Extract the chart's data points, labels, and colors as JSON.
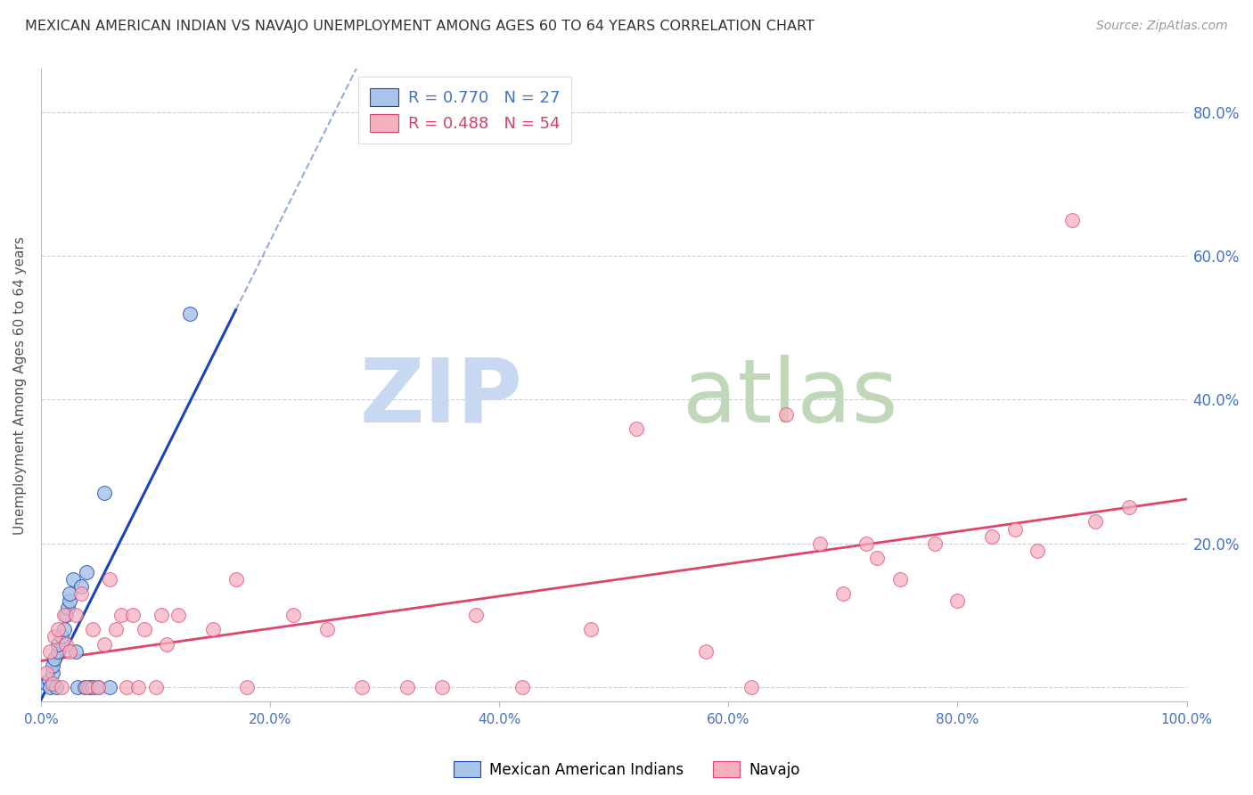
{
  "title": "MEXICAN AMERICAN INDIAN VS NAVAJO UNEMPLOYMENT AMONG AGES 60 TO 64 YEARS CORRELATION CHART",
  "source": "Source: ZipAtlas.com",
  "ylabel": "Unemployment Among Ages 60 to 64 years",
  "xlim": [
    0,
    1.0
  ],
  "ylim": [
    -0.02,
    0.86
  ],
  "yticks": [
    0.0,
    0.2,
    0.4,
    0.6,
    0.8
  ],
  "ytick_labels": [
    "",
    "20.0%",
    "40.0%",
    "60.0%",
    "80.0%"
  ],
  "xticks": [
    0.0,
    0.2,
    0.4,
    0.6,
    0.8,
    1.0
  ],
  "xtick_labels": [
    "0.0%",
    "20.0%",
    "40.0%",
    "60.0%",
    "80.0%",
    "100.0%"
  ],
  "legend_blue_r": "R = 0.770",
  "legend_blue_n": "N = 27",
  "legend_pink_r": "R = 0.488",
  "legend_pink_n": "N = 54",
  "blue_color": "#a8c4e8",
  "pink_color": "#f5b0c0",
  "blue_line_color": "#1a44bb",
  "pink_line_color": "#e04468",
  "legend_text_blue": "#4472c4",
  "legend_text_pink": "#d44060",
  "watermark_zip_color": "#c8d8f0",
  "watermark_atlas_color": "#c0d8b8",
  "axis_label_color": "#4472c4",
  "blue_x": [
    0.005,
    0.007,
    0.008,
    0.01,
    0.01,
    0.012,
    0.013,
    0.015,
    0.015,
    0.018,
    0.02,
    0.022,
    0.023,
    0.025,
    0.025,
    0.028,
    0.03,
    0.032,
    0.035,
    0.038,
    0.04,
    0.042,
    0.045,
    0.05,
    0.055,
    0.06,
    0.13
  ],
  "blue_y": [
    0.005,
    0.01,
    0.0,
    0.02,
    0.03,
    0.04,
    0.0,
    0.05,
    0.06,
    0.07,
    0.08,
    0.1,
    0.11,
    0.12,
    0.13,
    0.15,
    0.05,
    0.0,
    0.14,
    0.0,
    0.16,
    0.0,
    0.0,
    0.0,
    0.27,
    0.0,
    0.52
  ],
  "pink_x": [
    0.005,
    0.008,
    0.01,
    0.012,
    0.015,
    0.018,
    0.02,
    0.022,
    0.025,
    0.03,
    0.035,
    0.04,
    0.045,
    0.05,
    0.055,
    0.06,
    0.065,
    0.07,
    0.075,
    0.08,
    0.085,
    0.09,
    0.1,
    0.105,
    0.11,
    0.12,
    0.15,
    0.17,
    0.18,
    0.22,
    0.25,
    0.28,
    0.32,
    0.35,
    0.38,
    0.42,
    0.48,
    0.52,
    0.58,
    0.62,
    0.65,
    0.68,
    0.7,
    0.72,
    0.73,
    0.75,
    0.78,
    0.8,
    0.83,
    0.85,
    0.87,
    0.9,
    0.92,
    0.95
  ],
  "pink_y": [
    0.02,
    0.05,
    0.005,
    0.07,
    0.08,
    0.0,
    0.1,
    0.06,
    0.05,
    0.1,
    0.13,
    0.0,
    0.08,
    0.0,
    0.06,
    0.15,
    0.08,
    0.1,
    0.0,
    0.1,
    0.0,
    0.08,
    0.0,
    0.1,
    0.06,
    0.1,
    0.08,
    0.15,
    0.0,
    0.1,
    0.08,
    0.0,
    0.0,
    0.0,
    0.1,
    0.0,
    0.08,
    0.36,
    0.05,
    0.0,
    0.38,
    0.2,
    0.13,
    0.2,
    0.18,
    0.15,
    0.2,
    0.12,
    0.21,
    0.22,
    0.19,
    0.65,
    0.23,
    0.25
  ],
  "background_color": "#ffffff",
  "grid_color": "#ccccdd",
  "grid_style": "--"
}
